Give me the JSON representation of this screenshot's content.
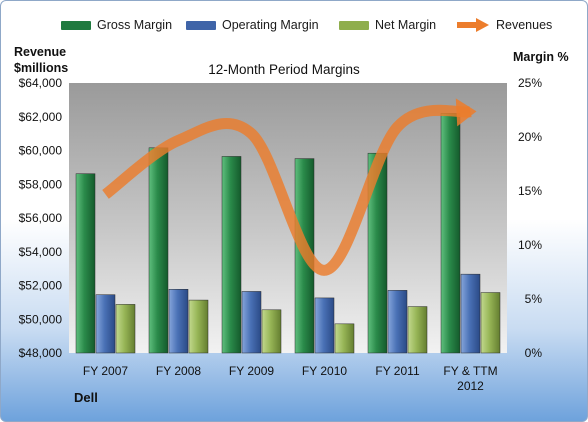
{
  "legend": [
    {
      "label": "Gross Margin",
      "color": "#1f7a3f"
    },
    {
      "label": "Operating Margin",
      "color": "#3f64a8"
    },
    {
      "label": "Net Margin",
      "color": "#8fae4d"
    },
    {
      "label": "Revenues",
      "color": "#ec7d2c"
    }
  ],
  "left_axis_title": [
    "Revenue",
    "$millions"
  ],
  "right_axis_title": "Margin %",
  "footer_label": "Dell",
  "chart_data": {
    "type": "bar",
    "title": "12-Month Period Margins",
    "categories": [
      [
        "FY 2007"
      ],
      [
        "FY 2008"
      ],
      [
        "FY 2009"
      ],
      [
        "FY 2010"
      ],
      [
        "FY 2011"
      ],
      [
        "FY & TTM",
        "2012"
      ]
    ],
    "series": [
      {
        "name": "Gross Margin",
        "axis": "right",
        "color": "#1f7a3f",
        "values": [
          16.6,
          19.0,
          18.2,
          18.0,
          18.5,
          22.2
        ]
      },
      {
        "name": "Operating Margin",
        "axis": "right",
        "color": "#3f64a8",
        "values": [
          5.4,
          5.9,
          5.7,
          5.1,
          5.8,
          7.3
        ]
      },
      {
        "name": "Net Margin",
        "axis": "right",
        "color": "#8fae4d",
        "values": [
          4.5,
          4.9,
          4.0,
          2.7,
          4.3,
          5.6
        ]
      },
      {
        "name": "Revenues",
        "type": "line",
        "axis": "left",
        "color": "#ec7d2c",
        "values": [
          57400,
          60600,
          61000,
          52900,
          61400,
          62300
        ]
      }
    ],
    "left_axis": {
      "min": 48000,
      "max": 64000,
      "step": 2000,
      "ticks": [
        "$48,000",
        "$50,000",
        "$52,000",
        "$54,000",
        "$56,000",
        "$58,000",
        "$60,000",
        "$62,000",
        "$64,000"
      ]
    },
    "right_axis": {
      "min": 0,
      "max": 25,
      "step": 5,
      "ticks": [
        "0%",
        "5%",
        "10%",
        "15%",
        "20%",
        "25%"
      ]
    },
    "grid": false,
    "legend_position": "top"
  }
}
